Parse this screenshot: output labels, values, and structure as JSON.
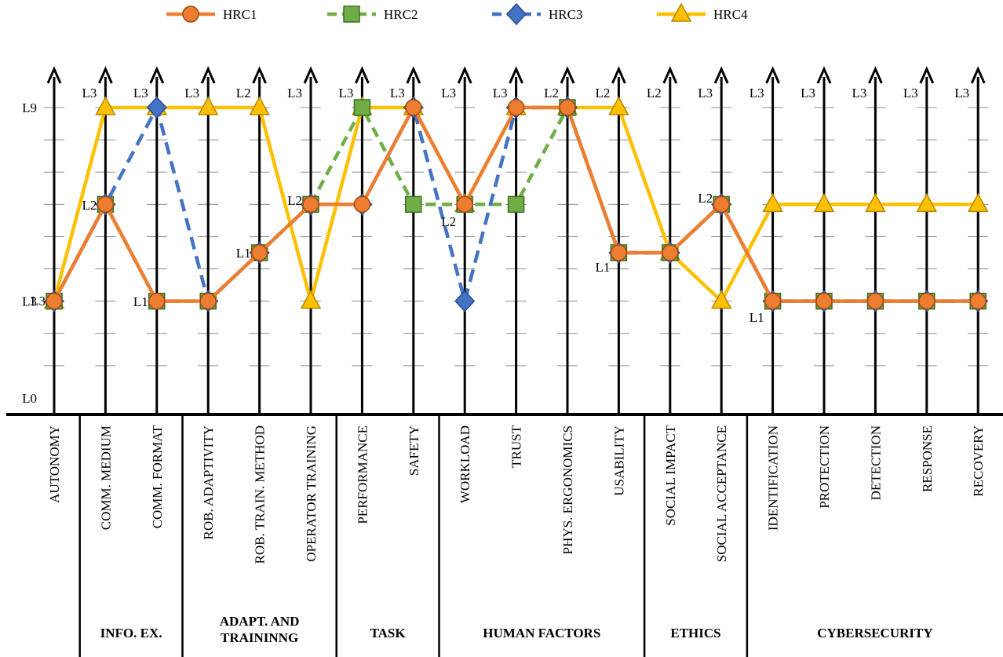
{
  "chart_data": {
    "type": "line",
    "title": "",
    "xlabel": "",
    "ylabel": "",
    "ylim": [
      0,
      9
    ],
    "y_tick_labels": [
      {
        "value": 9,
        "label": "L9"
      },
      {
        "value": 3,
        "label": "L3"
      },
      {
        "value": 0,
        "label": "L0"
      }
    ],
    "legend_position": "top",
    "categories": [
      "AUTONOMY",
      "COMM. MEDIUM",
      "COMM. FORMAT",
      "ROB. ADAPTIVITY",
      "ROB. TRAIN. METHOD",
      "OPERATOR TRAINING",
      "PERFORMANCE",
      "SAFETY",
      "WORKLOAD",
      "TRUST",
      "PHYS. ERGONOMICS",
      "USABILITY",
      "SOCIAL IMPACT",
      "SOCIAL ACCEPTANCE",
      "IDENTIFICATION",
      "PROTECTION",
      "DETECTION",
      "RESPONSE",
      "RECOVERY"
    ],
    "groups": [
      {
        "label": "",
        "start": 0,
        "end": 0
      },
      {
        "label": "INFO. EX.",
        "start": 1,
        "end": 2
      },
      {
        "label": "ADAPT. AND TRAININNG",
        "start": 3,
        "end": 5
      },
      {
        "label": "TASK",
        "start": 6,
        "end": 7
      },
      {
        "label": "HUMAN FACTORS",
        "start": 8,
        "end": 11
      },
      {
        "label": "ETHICS",
        "start": 12,
        "end": 13
      },
      {
        "label": "CYBERSECURITY",
        "start": 14,
        "end": 18
      }
    ],
    "axis_top_labels": [
      "",
      "L3",
      "L3",
      "L3",
      "L2",
      "L3",
      "L3",
      "L3",
      "L3",
      "L3",
      "L2",
      "L2",
      "L2",
      "L3",
      "L3",
      "L3",
      "L3",
      "L3",
      "L3"
    ],
    "axis_left_labels": [
      "L3",
      "L2",
      "L1",
      "",
      "L1",
      "L2",
      "",
      "",
      "L2",
      "",
      "",
      "L1",
      "",
      "L2",
      "L1",
      "",
      "",
      "",
      ""
    ],
    "series": [
      {
        "name": "HRC1",
        "color": "#ED7D31",
        "marker": "circle",
        "dash": "solid",
        "values": [
          3,
          6,
          3,
          3,
          4.5,
          6,
          6,
          9,
          6,
          9,
          9,
          4.5,
          4.5,
          6,
          3,
          3,
          3,
          3,
          3
        ]
      },
      {
        "name": "HRC2",
        "color": "#70AD47",
        "marker": "square",
        "dash": "dash",
        "values": [
          3,
          6,
          3,
          3,
          4.5,
          6,
          9,
          6,
          6,
          6,
          9,
          4.5,
          4.5,
          6,
          3,
          3,
          3,
          3,
          3
        ]
      },
      {
        "name": "HRC3",
        "color": "#4472C4",
        "marker": "diamond",
        "dash": "dash",
        "values": [
          3,
          6,
          9,
          3,
          4.5,
          6,
          6,
          9,
          3,
          9,
          9,
          4.5,
          4.5,
          6,
          3,
          3,
          3,
          3,
          3
        ]
      },
      {
        "name": "HRC4",
        "color": "#FFC000",
        "marker": "triangle",
        "dash": "solid",
        "values": [
          3,
          9,
          9,
          9,
          9,
          3,
          9,
          9,
          6,
          9,
          9,
          9,
          4.5,
          3,
          6,
          6,
          6,
          6,
          6
        ]
      }
    ]
  }
}
